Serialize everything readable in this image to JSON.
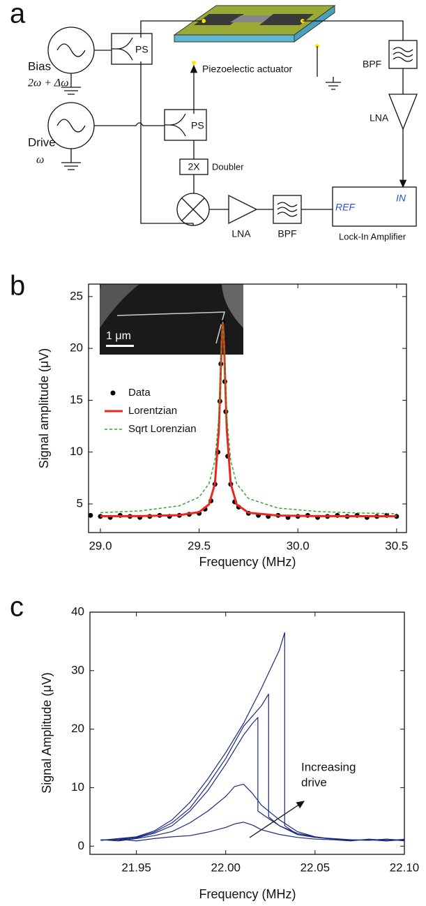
{
  "diagram": {
    "panel_label": "a",
    "bias": "Bias",
    "bias_freq": "2ω + Δω",
    "ps_top": "PS",
    "actuator": "Piezoelectic actuator",
    "bpf_right": "BPF",
    "lna_right": "LNA",
    "drive": "Drive",
    "drive_freq": "ω",
    "ps_mid": "PS",
    "doubler_box": "2X",
    "doubler": "Doubler",
    "lna_bottom": "LNA",
    "bpf_bottom": "BPF",
    "ref": "REF",
    "in": "IN",
    "lockin": "Lock-In Amplifier"
  },
  "chart_data": [
    {
      "type": "line",
      "panel_label": "b",
      "xlabel": "Frequency (MHz)",
      "ylabel": "Signal amplitude (μV)",
      "inset_label": "1 μm",
      "legend": "left",
      "xlim": [
        28.94,
        30.55
      ],
      "xticks": [
        {
          "value": 29,
          "label": "29.0"
        },
        29.5,
        {
          "value": 30,
          "label": "30.0"
        },
        30.5
      ],
      "ylim": [
        2.24,
        26.2
      ],
      "yticks": [
        5,
        10,
        15,
        20,
        25
      ],
      "series": [
        {
          "name": "Data",
          "color": "#000000",
          "marker": true,
          "x": [
            28.95,
            29.0,
            29.05,
            29.1,
            29.15,
            29.2,
            29.25,
            29.3,
            29.35,
            29.4,
            29.45,
            29.5,
            29.53,
            29.56,
            29.58,
            29.595,
            29.605,
            29.61,
            29.615,
            29.62,
            29.625,
            29.63,
            29.635,
            29.645,
            29.66,
            29.68,
            29.7,
            29.75,
            29.8,
            29.85,
            29.9,
            29.95,
            30.0,
            30.05,
            30.1,
            30.15,
            30.2,
            30.25,
            30.3,
            30.35,
            30.4,
            30.45,
            30.5
          ],
          "values": [
            3.9,
            3.8,
            3.7,
            3.9,
            3.8,
            3.7,
            3.8,
            3.9,
            3.8,
            3.9,
            4.0,
            4.1,
            4.5,
            5.3,
            6.9,
            10.0,
            14.9,
            18.5,
            21.0,
            22.5,
            20.9,
            16.8,
            13.9,
            9.6,
            6.9,
            5.2,
            4.7,
            4.1,
            3.9,
            3.8,
            3.9,
            3.7,
            3.8,
            3.9,
            3.7,
            3.8,
            3.9,
            3.8,
            3.9,
            3.7,
            3.8,
            3.9,
            3.8
          ]
        },
        {
          "name": "Lorentzian",
          "color": "#e8281e",
          "width": 3,
          "x": [
            29.0,
            29.2,
            29.4,
            29.5,
            29.55,
            29.58,
            29.6,
            29.61,
            29.615,
            29.62,
            29.625,
            29.63,
            29.64,
            29.66,
            29.69,
            29.75,
            29.9,
            30.1,
            30.3,
            30.5
          ],
          "values": [
            3.82,
            3.83,
            3.92,
            4.21,
            4.96,
            6.95,
            12.18,
            18.1,
            21.16,
            22.5,
            21.16,
            18.1,
            12.18,
            6.95,
            4.96,
            4.15,
            3.88,
            3.83,
            3.82,
            3.81
          ]
        },
        {
          "name": "Sqrt Lorenzian",
          "color": "#2ea82e",
          "width": 1.5,
          "dash": true,
          "x": [
            29.0,
            29.2,
            29.4,
            29.5,
            29.55,
            29.58,
            29.6,
            29.61,
            29.615,
            29.62,
            29.625,
            29.63,
            29.64,
            29.66,
            29.69,
            29.75,
            29.9,
            30.1,
            30.3,
            30.5
          ],
          "values": [
            4.16,
            4.33,
            4.82,
            5.66,
            6.96,
            9.17,
            13.43,
            18.17,
            21.06,
            22.5,
            21.06,
            18.17,
            13.43,
            9.17,
            6.96,
            5.52,
            4.6,
            4.27,
            4.13,
            4.06
          ]
        }
      ]
    },
    {
      "type": "line",
      "panel_label": "c",
      "xlabel": "Frequency (MHz)",
      "ylabel": "Signal Amplitude (μV)",
      "annotation": [
        "Increasing",
        "drive"
      ],
      "xlim": [
        21.924,
        22.1
      ],
      "xticks": [
        21.95,
        {
          "value": 22,
          "label": "22.00"
        },
        22.05,
        {
          "value": 22.1,
          "label": "22.10"
        }
      ],
      "ylim": [
        -1.4,
        40
      ],
      "yticks": [
        0,
        10,
        20,
        30,
        40
      ],
      "series": [
        {
          "color": "#1b2a80",
          "x": [
            21.93,
            21.94,
            21.95,
            21.96,
            21.97,
            21.98,
            21.99,
            22.0,
            22.005,
            22.01,
            22.015,
            22.02,
            22.03,
            22.04,
            22.05,
            22.06,
            22.07,
            22.08,
            22.09,
            22.1
          ],
          "values": [
            1.0,
            1.2,
            0.9,
            1.3,
            1.6,
            1.8,
            2.4,
            3.2,
            3.8,
            4.1,
            3.6,
            2.8,
            2.0,
            1.5,
            1.2,
            1.1,
            0.9,
            1.2,
            1.0,
            1.1
          ]
        },
        {
          "color": "#1b2a80",
          "x": [
            21.93,
            21.94,
            21.95,
            21.96,
            21.97,
            21.98,
            21.99,
            22.0,
            22.005,
            22.01,
            22.015,
            22.02,
            22.03,
            22.04,
            22.05,
            22.06,
            22.07,
            22.08,
            22.09,
            22.1
          ],
          "values": [
            1.1,
            0.9,
            1.3,
            1.8,
            2.5,
            4.0,
            6.0,
            8.5,
            10.2,
            10.6,
            9.0,
            7.0,
            4.5,
            2.5,
            1.6,
            1.2,
            1.0,
            1.1,
            0.9,
            1.2
          ]
        },
        {
          "color": "#1b2a80",
          "x": [
            21.93,
            21.94,
            21.95,
            21.96,
            21.97,
            21.98,
            21.99,
            22.0,
            22.005,
            22.01,
            22.015,
            22.018,
            22.018,
            22.025,
            22.03,
            22.04,
            22.05,
            22.06,
            22.07,
            22.08,
            22.09,
            22.1
          ],
          "values": [
            1.0,
            1.2,
            1.4,
            2.2,
            3.5,
            6.0,
            9.5,
            14.0,
            16.5,
            19.0,
            21.0,
            22.0,
            6.0,
            4.5,
            3.5,
            2.2,
            1.6,
            1.2,
            1.1,
            1.0,
            1.2,
            0.9
          ]
        },
        {
          "color": "#1b2a80",
          "x": [
            21.93,
            21.94,
            21.95,
            21.96,
            21.97,
            21.98,
            21.99,
            22.0,
            22.01,
            22.02,
            22.024,
            22.024,
            22.03,
            22.04,
            22.05,
            22.06,
            22.07,
            22.08,
            22.09,
            22.1
          ],
          "values": [
            1.1,
            1.0,
            1.5,
            2.4,
            4.0,
            6.5,
            10.5,
            15.0,
            20.5,
            24.0,
            26.0,
            5.0,
            3.5,
            2.0,
            1.5,
            1.2,
            1.0,
            1.1,
            0.9,
            1.1
          ]
        },
        {
          "color": "#1b2a80",
          "x": [
            21.93,
            21.94,
            21.95,
            21.96,
            21.97,
            21.98,
            21.99,
            22.0,
            22.01,
            22.02,
            22.03,
            22.033,
            22.033,
            22.04,
            22.05,
            22.06,
            22.07,
            22.08,
            22.09,
            22.1
          ],
          "values": [
            1.0,
            1.3,
            1.6,
            2.6,
            4.5,
            7.5,
            11.5,
            16.0,
            21.0,
            27.0,
            33.5,
            36.5,
            3.5,
            2.0,
            1.5,
            1.3,
            1.1,
            1.0,
            1.2,
            1.0
          ]
        }
      ]
    }
  ]
}
